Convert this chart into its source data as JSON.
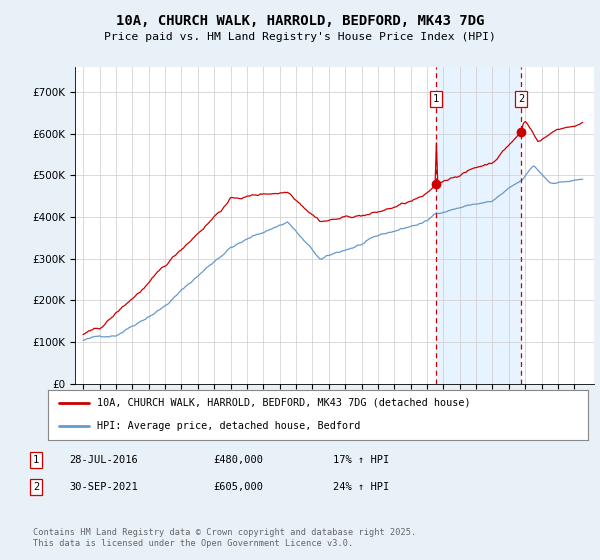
{
  "title": "10A, CHURCH WALK, HARROLD, BEDFORD, MK43 7DG",
  "subtitle": "Price paid vs. HM Land Registry's House Price Index (HPI)",
  "property_label": "10A, CHURCH WALK, HARROLD, BEDFORD, MK43 7DG (detached house)",
  "hpi_label": "HPI: Average price, detached house, Bedford",
  "sale1_date": "28-JUL-2016",
  "sale1_price": 480000,
  "sale1_pct": "17% ↑ HPI",
  "sale2_date": "30-SEP-2021",
  "sale2_price": 605000,
  "sale2_pct": "24% ↑ HPI",
  "footer": "Contains HM Land Registry data © Crown copyright and database right 2025.\nThis data is licensed under the Open Government Licence v3.0.",
  "property_color": "#cc0000",
  "hpi_color": "#6699cc",
  "vline_color": "#cc0000",
  "shade_color": "#ddeeff",
  "background_color": "#e8f0f8",
  "plot_bg_color": "#ffffff",
  "ylim": [
    0,
    760000
  ],
  "sale1_year": 2016.57,
  "sale2_year": 2021.75
}
